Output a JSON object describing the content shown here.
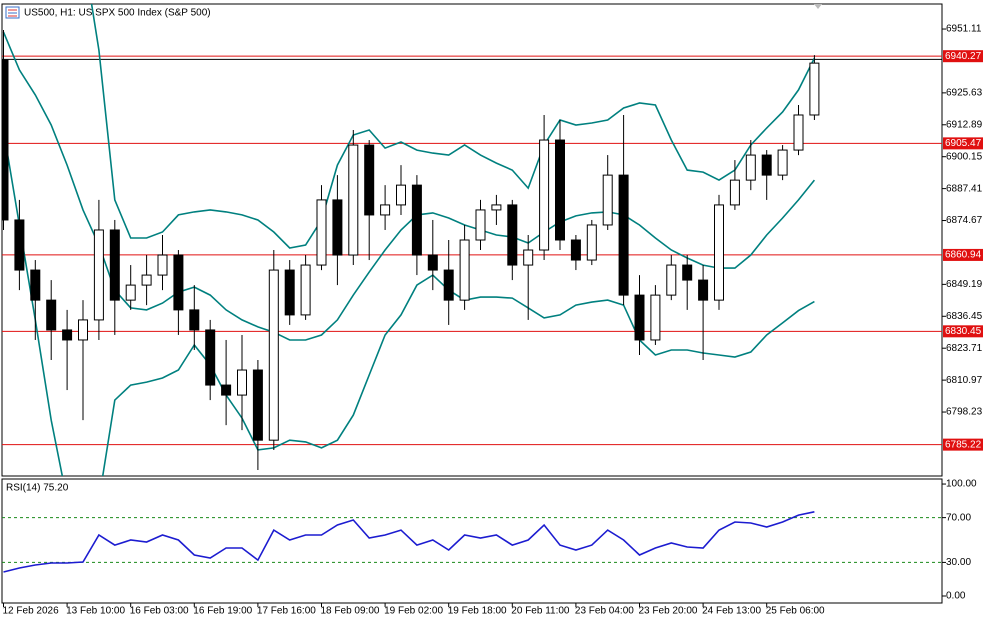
{
  "chart_data": [
    {
      "type": "candlestick",
      "title": "US500, H1:  US SPX 500 Index (S&P 500)",
      "ylim": [
        6772.7,
        6961.1
      ],
      "yticks": [
        6951.11,
        6925.63,
        6912.89,
        6900.15,
        6887.41,
        6874.67,
        6849.19,
        6836.45,
        6823.71,
        6810.97,
        6798.23
      ],
      "open": [
        6938.7,
        6874.9,
        6854.9,
        6842.9,
        6831.0,
        6827.0,
        6835.0,
        6870.9,
        6842.9,
        6848.9,
        6852.9,
        6860.9,
        6839.0,
        6831.0,
        6809.0,
        6805.0,
        6815.0,
        6787.0,
        6854.9,
        6837.0,
        6856.9,
        6882.9,
        6860.9,
        6904.8,
        6876.9,
        6880.9,
        6888.8,
        6860.9,
        6854.9,
        6842.9,
        6866.9,
        6878.9,
        6880.9,
        6856.9,
        6862.9,
        6906.8,
        6866.9,
        6858.9,
        6872.9,
        6892.8,
        6844.9,
        6827.0,
        6844.9,
        6856.9,
        6850.9,
        6842.9,
        6880.9,
        6890.8,
        6900.8,
        6892.8,
        6902.8,
        6916.8
      ],
      "high": [
        6950.7,
        6882.9,
        6858.9,
        6850.9,
        6839.0,
        6842.9,
        6882.9,
        6874.9,
        6856.9,
        6860.9,
        6868.9,
        6862.9,
        6848.9,
        6835.0,
        6827.0,
        6829.0,
        6819.0,
        6862.9,
        6858.9,
        6860.9,
        6888.8,
        6892.8,
        6910.8,
        6906.8,
        6888.8,
        6896.8,
        6892.8,
        6874.9,
        6866.9,
        6872.9,
        6882.9,
        6884.9,
        6882.9,
        6868.9,
        6916.8,
        6914.8,
        6868.9,
        6874.9,
        6900.8,
        6916.8,
        6852.9,
        6848.9,
        6860.9,
        6860.9,
        6856.9,
        6884.9,
        6898.8,
        6906.8,
        6902.8,
        6904.8,
        6920.8,
        6940.7
      ],
      "low": [
        6870.9,
        6846.9,
        6827.0,
        6819.0,
        6807.0,
        6795.0,
        6827.0,
        6829.0,
        6839.0,
        6840.9,
        6846.9,
        6829.0,
        6823.0,
        6803.0,
        6793.0,
        6791.0,
        6775.1,
        6783.1,
        6833.0,
        6835.0,
        6854.9,
        6848.9,
        6856.9,
        6858.9,
        6870.9,
        6876.9,
        6852.9,
        6846.9,
        6833.0,
        6839.0,
        6862.9,
        6872.9,
        6850.9,
        6835.0,
        6858.9,
        6862.9,
        6854.9,
        6856.9,
        6870.9,
        6840.9,
        6821.0,
        6825.0,
        6842.9,
        6839.0,
        6819.0,
        6839.0,
        6878.9,
        6886.8,
        6882.9,
        6890.8,
        6900.8,
        6914.8
      ],
      "close": [
        6874.9,
        6854.9,
        6842.9,
        6831.0,
        6827.0,
        6835.0,
        6870.9,
        6842.9,
        6848.9,
        6852.9,
        6860.9,
        6839.0,
        6831.0,
        6809.0,
        6805.0,
        6815.0,
        6787.0,
        6854.9,
        6837.0,
        6856.9,
        6882.9,
        6860.9,
        6904.8,
        6876.9,
        6880.9,
        6888.8,
        6860.9,
        6854.9,
        6842.9,
        6866.9,
        6878.9,
        6880.9,
        6856.9,
        6862.9,
        6906.8,
        6866.9,
        6858.9,
        6872.9,
        6892.8,
        6844.9,
        6827.0,
        6844.9,
        6856.9,
        6850.9,
        6842.9,
        6880.9,
        6890.8,
        6900.8,
        6892.8,
        6902.8,
        6916.8,
        6937.5
      ],
      "bands": {
        "upper": [
          7082.4,
          7062.5,
          7042.5,
          7022.6,
          7002.6,
          6982.7,
          6942.7,
          6882.9,
          6867.7,
          6867.7,
          6870.1,
          6876.9,
          6878.1,
          6878.9,
          6878.1,
          6876.9,
          6874.9,
          6870.1,
          6863.7,
          6864.9,
          6874.9,
          6896.8,
          6908.8,
          6910.8,
          6903.6,
          6906.0,
          6902.8,
          6901.6,
          6900.8,
          6904.8,
          6900.8,
          6897.6,
          6894.8,
          6887.6,
          6904.8,
          6914.8,
          6912.8,
          6913.6,
          6914.8,
          6919.6,
          6921.6,
          6920.8,
          6906.8,
          6894.8,
          6894.0,
          6890.8,
          6894.8,
          6904.8,
          6911.6,
          6918.0,
          6926.8,
          6939.5
        ],
        "middle": [
          6949.9,
          6934.8,
          6924.8,
          6912.8,
          6896.8,
          6878.9,
          6864.9,
          6846.9,
          6839.8,
          6839.0,
          6841.7,
          6846.1,
          6848.1,
          6844.9,
          6839.0,
          6835.0,
          6832.2,
          6830.1,
          6827.0,
          6827.0,
          6829.0,
          6835.0,
          6844.9,
          6854.1,
          6862.9,
          6870.9,
          6876.9,
          6877.7,
          6875.7,
          6872.9,
          6870.9,
          6868.9,
          6868.1,
          6865.7,
          6870.1,
          6874.1,
          6876.5,
          6877.7,
          6878.1,
          6876.9,
          6872.9,
          6867.7,
          6862.9,
          6859.7,
          6856.9,
          6855.7,
          6855.7,
          6860.9,
          6868.9,
          6875.7,
          6882.9,
          6890.8
        ],
        "lower": [
          6910.8,
          6872.9,
          6835.0,
          6795.0,
          6763.1,
          6751.1,
          6763.1,
          6803.0,
          6809.0,
          6810.2,
          6811.8,
          6815.0,
          6825.0,
          6817.0,
          6805.0,
          6795.8,
          6783.1,
          6783.9,
          6787.0,
          6786.3,
          6783.9,
          6787.0,
          6797.0,
          6813.0,
          6829.0,
          6837.0,
          6848.9,
          6852.9,
          6846.9,
          6842.9,
          6844.1,
          6844.1,
          6843.7,
          6839.8,
          6835.8,
          6837.0,
          6840.9,
          6842.1,
          6842.9,
          6840.9,
          6827.0,
          6821.0,
          6823.0,
          6823.0,
          6821.8,
          6821.0,
          6820.2,
          6822.2,
          6829.0,
          6833.8,
          6838.7,
          6842.3
        ]
      },
      "band_color": "#00807f",
      "levels": [
        6940.27,
        6905.47,
        6860.94,
        6830.45,
        6785.22
      ],
      "level_color": "#e01010",
      "price_line": 6939.0
    },
    {
      "type": "line",
      "title": "RSI(14) 75.20",
      "categories": [
        "12 Feb 2026",
        null,
        null,
        null,
        "13 Feb 10:00",
        null,
        null,
        null,
        "16 Feb 03:00",
        null,
        null,
        null,
        "16 Feb 19:00",
        null,
        null,
        null,
        "17 Feb 16:00",
        null,
        null,
        null,
        "18 Feb 09:00",
        null,
        null,
        null,
        "19 Feb 02:00",
        null,
        null,
        null,
        "19 Feb 18:00",
        null,
        null,
        null,
        "20 Feb 11:00",
        null,
        null,
        null,
        "23 Feb 04:00",
        null,
        null,
        null,
        "23 Feb 20:00",
        null,
        null,
        null,
        "24 Feb 13:00",
        null,
        null,
        null,
        "25 Feb 06:00",
        null,
        null,
        null
      ],
      "values": [
        21.4,
        25.0,
        27.7,
        29.5,
        29.5,
        30.4,
        54.5,
        45.5,
        50.0,
        48.2,
        54.5,
        50.0,
        36.6,
        33.9,
        42.9,
        42.9,
        32.1,
        58.9,
        50.0,
        54.5,
        54.5,
        63.4,
        67.9,
        51.8,
        54.5,
        58.9,
        45.5,
        50.0,
        41.1,
        54.5,
        51.8,
        54.5,
        45.5,
        50.0,
        63.4,
        45.5,
        41.1,
        45.5,
        58.9,
        50.0,
        36.6,
        42.9,
        47.3,
        43.8,
        42.9,
        58.9,
        66.1,
        65.2,
        61.6,
        66.1,
        72.3,
        75.2
      ],
      "color": "#1c1cd0",
      "ylim": [
        -6.25,
        104.5
      ],
      "yticks": [
        {
          "value": 100,
          "label": "100.00"
        },
        {
          "value": 70,
          "label": "70.00"
        },
        {
          "value": 30,
          "label": "30.00"
        },
        {
          "value": 0,
          "label": "0.00"
        }
      ],
      "levels": [
        70,
        30
      ],
      "level_color": "#1a8a1a"
    }
  ]
}
